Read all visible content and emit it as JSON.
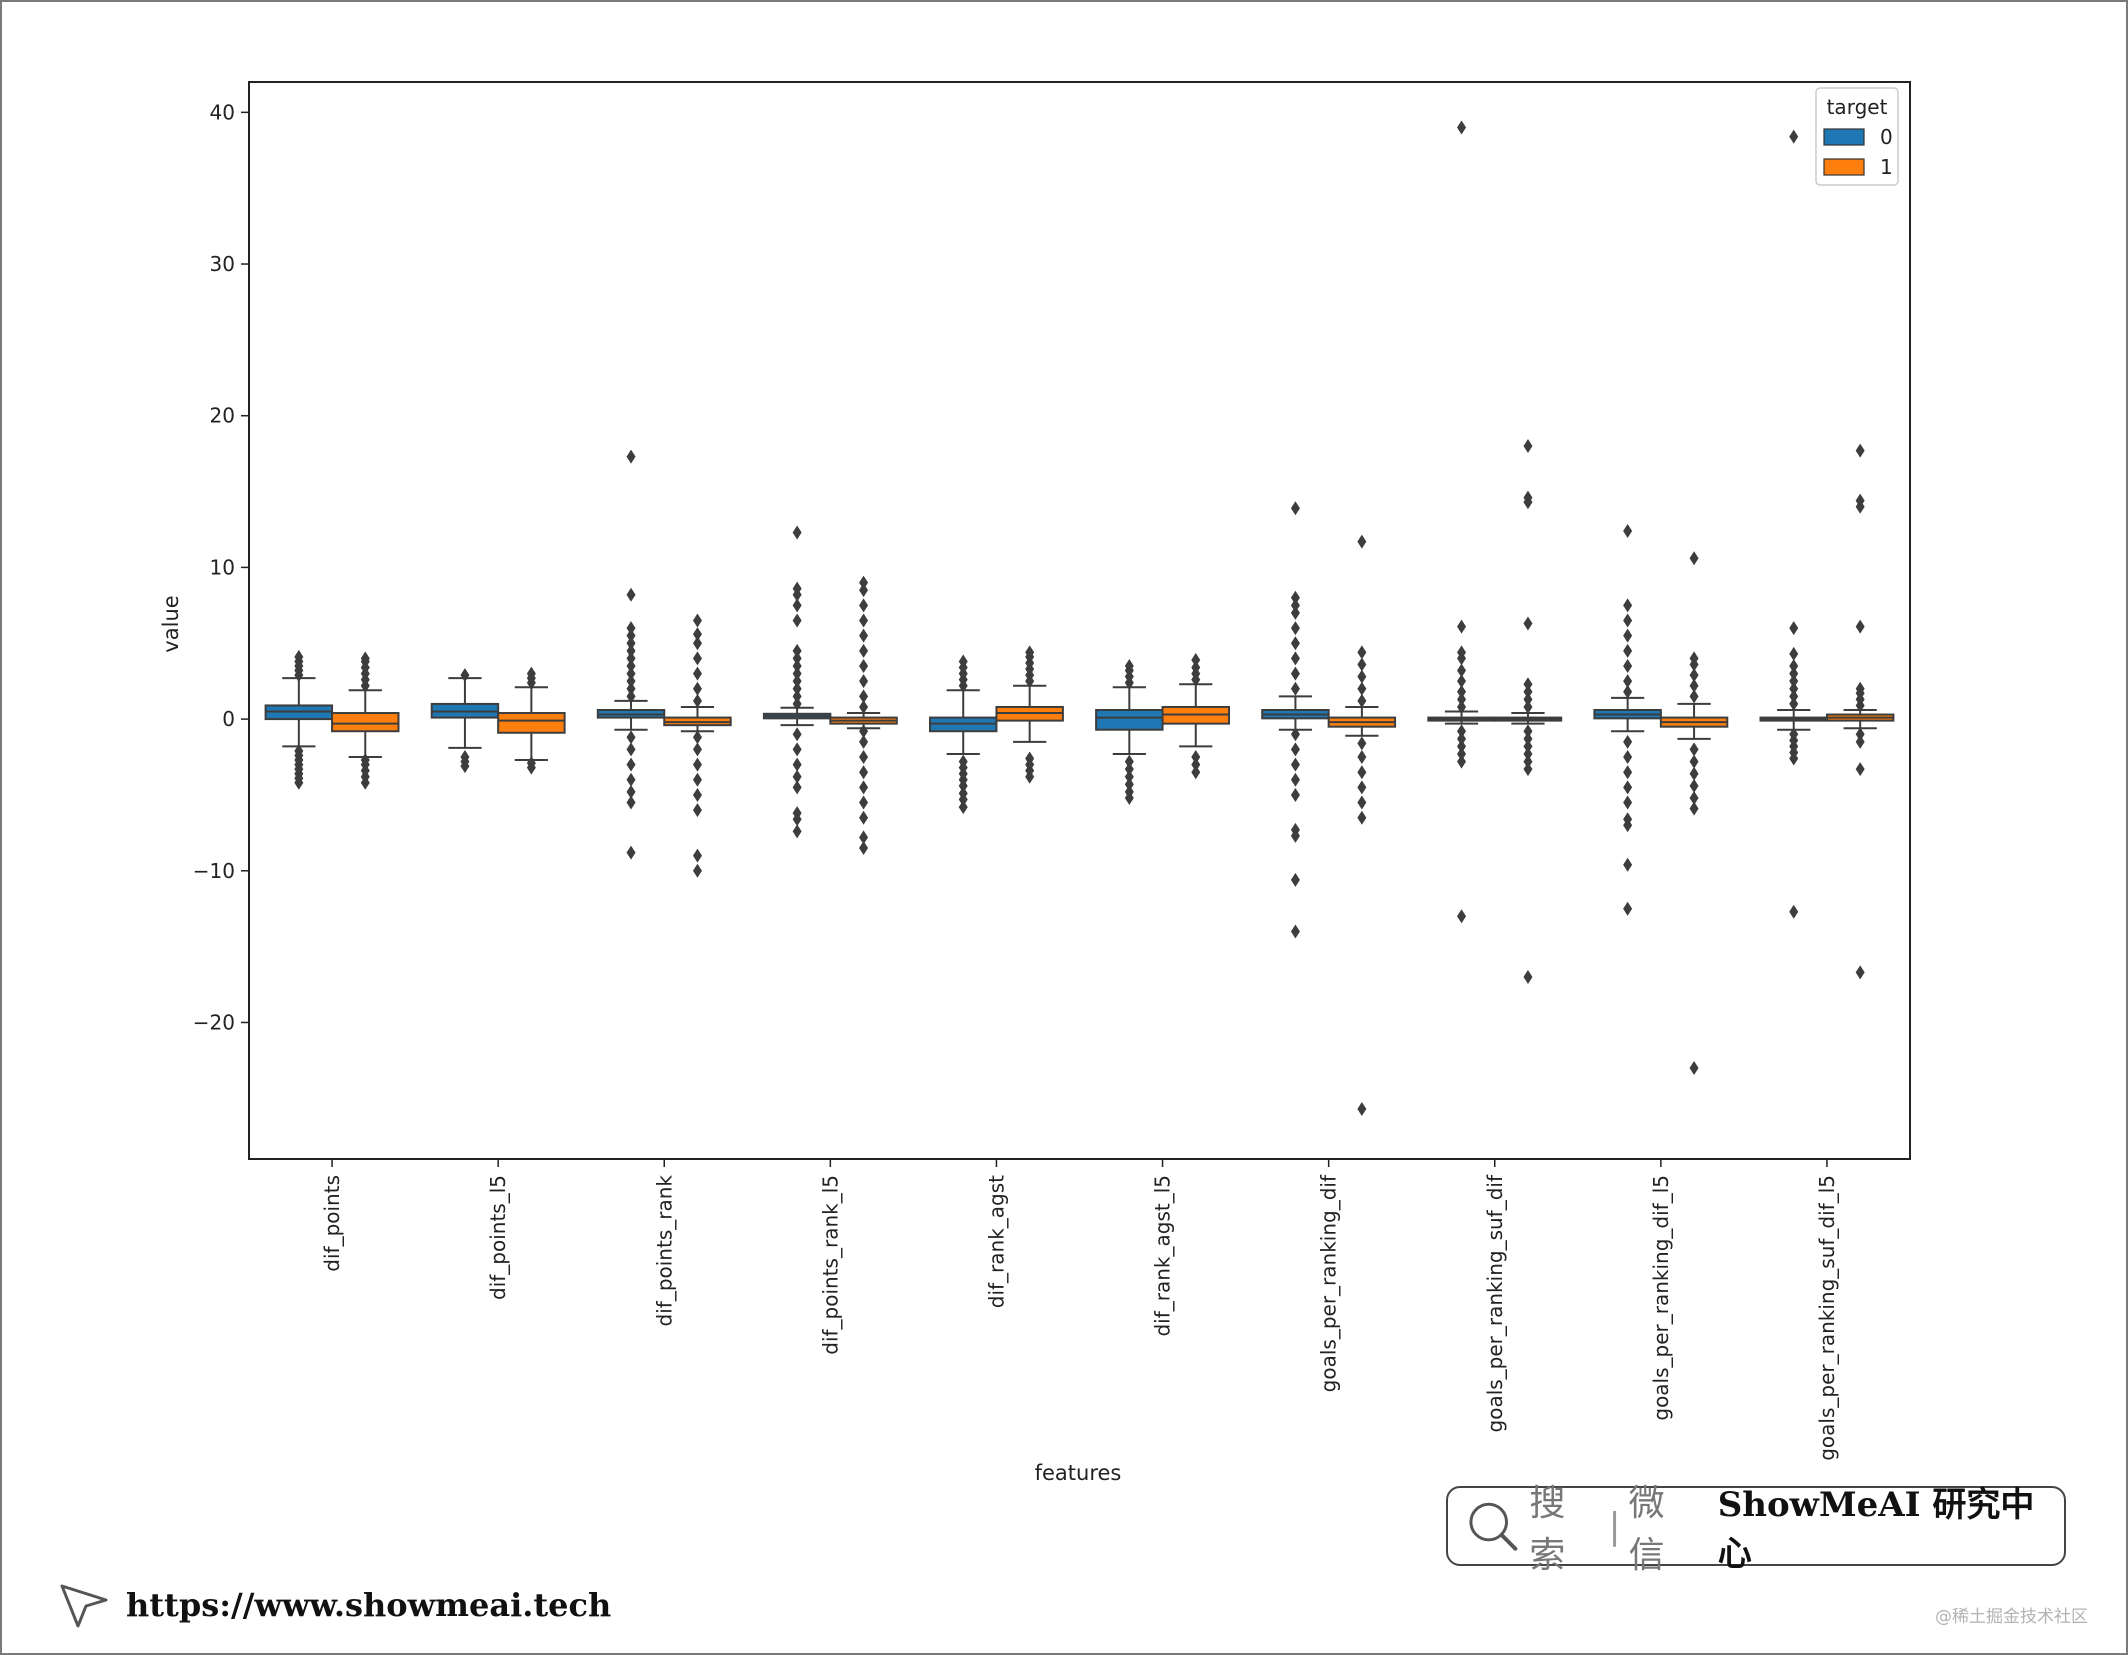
{
  "chart_data": {
    "type": "box",
    "xlabel": "features",
    "ylabel": "value",
    "ylim": [
      -29,
      42
    ],
    "yticks": [
      40,
      30,
      20,
      10,
      0,
      -10,
      -20
    ],
    "ytick_labels": [
      "40",
      "30",
      "20",
      "10",
      "0",
      "−10",
      "−20"
    ],
    "legend": {
      "title": "target",
      "placement": "top-right",
      "entries": [
        "0",
        "1"
      ]
    },
    "colors": {
      "0": "#1f77b4",
      "1": "#ff7f0e"
    },
    "grid": false,
    "categories": [
      "dif_points",
      "dif_points_l5",
      "dif_points_rank",
      "dif_points_rank_l5",
      "dif_rank_agst",
      "dif_rank_agst_l5",
      "goals_per_ranking_dif",
      "goals_per_ranking_suf_dif",
      "goals_per_ranking_dif_l5",
      "goals_per_ranking_suf_dif_l5"
    ],
    "series": [
      {
        "name": "0",
        "boxes": [
          {
            "whislo": -1.8,
            "q1": 0.0,
            "med": 0.5,
            "q3": 0.9,
            "whishi": 2.7,
            "fliers": [
              -4.2,
              -3.9,
              -3.6,
              -3.3,
              -3.0,
              -2.7,
              -2.4,
              -2.1,
              2.9,
              3.2,
              3.5,
              3.8,
              4.1
            ]
          },
          {
            "whislo": -1.9,
            "q1": 0.1,
            "med": 0.5,
            "q3": 1.0,
            "whishi": 2.7,
            "fliers": [
              -3.1,
              -2.8,
              -2.5,
              2.9
            ]
          },
          {
            "whislo": -0.7,
            "q1": 0.1,
            "med": 0.3,
            "q3": 0.6,
            "whishi": 1.2,
            "fliers": [
              -8.8,
              -5.5,
              -4.8,
              -4.0,
              -3.0,
              -2.0,
              -1.2,
              1.5,
              2.0,
              2.5,
              3.0,
              3.5,
              4.0,
              4.5,
              5.0,
              5.5,
              6.0,
              8.2,
              17.3
            ]
          },
          {
            "whislo": -0.4,
            "q1": 0.05,
            "med": 0.2,
            "q3": 0.35,
            "whishi": 0.75,
            "fliers": [
              -7.4,
              -6.6,
              -6.2,
              -4.5,
              -3.8,
              -3.0,
              -2.0,
              -1.0,
              1.0,
              1.5,
              2.0,
              2.5,
              3.0,
              3.5,
              4.0,
              4.5,
              6.5,
              7.5,
              8.2,
              8.6,
              12.3
            ]
          },
          {
            "whislo": -2.3,
            "q1": -0.8,
            "med": -0.3,
            "q3": 0.1,
            "whishi": 1.9,
            "fliers": [
              -5.8,
              -5.3,
              -4.9,
              -4.4,
              -4.0,
              -3.6,
              -3.2,
              -2.8,
              2.2,
              2.6,
              3.0,
              3.4,
              3.8
            ]
          },
          {
            "whislo": -2.3,
            "q1": -0.7,
            "med": 0.1,
            "q3": 0.6,
            "whishi": 2.1,
            "fliers": [
              -5.2,
              -4.8,
              -4.3,
              -3.8,
              -3.3,
              -2.8,
              2.4,
              2.8,
              3.2,
              3.5
            ]
          },
          {
            "whislo": -0.7,
            "q1": 0.05,
            "med": 0.3,
            "q3": 0.6,
            "whishi": 1.5,
            "fliers": [
              -14.0,
              -10.6,
              -7.7,
              -7.3,
              -5.0,
              -4.0,
              -3.0,
              -2.0,
              -1.0,
              2.0,
              3.0,
              4.0,
              5.0,
              6.0,
              7.0,
              7.5,
              8.0,
              13.9
            ]
          },
          {
            "whislo": -0.3,
            "q1": -0.1,
            "med": 0.0,
            "q3": 0.1,
            "whishi": 0.5,
            "fliers": [
              -13.0,
              -2.8,
              -2.3,
              -1.8,
              -1.3,
              -0.8,
              0.8,
              1.3,
              1.8,
              2.5,
              3.2,
              4.0,
              4.4,
              6.1,
              39.0
            ]
          },
          {
            "whislo": -0.8,
            "q1": 0.05,
            "med": 0.3,
            "q3": 0.6,
            "whishi": 1.4,
            "fliers": [
              -12.5,
              -9.6,
              -7.0,
              -6.6,
              -5.5,
              -4.5,
              -3.5,
              -2.5,
              -1.5,
              1.8,
              2.5,
              3.5,
              4.5,
              5.5,
              6.5,
              7.5,
              12.4
            ]
          },
          {
            "whislo": -0.7,
            "q1": -0.1,
            "med": 0.0,
            "q3": 0.1,
            "whishi": 0.6,
            "fliers": [
              -12.7,
              -2.6,
              -2.2,
              -1.8,
              -1.4,
              -1.0,
              1.0,
              1.5,
              2.0,
              2.5,
              3.0,
              3.5,
              4.3,
              6.0,
              38.4
            ]
          }
        ]
      },
      {
        "name": "1",
        "boxes": [
          {
            "whislo": -2.5,
            "q1": -0.8,
            "med": -0.3,
            "q3": 0.4,
            "whishi": 1.9,
            "fliers": [
              -4.2,
              -3.8,
              -3.4,
              -3.0,
              -2.7,
              2.2,
              2.6,
              3.0,
              3.4,
              3.8,
              4.0
            ]
          },
          {
            "whislo": -2.7,
            "q1": -0.9,
            "med": -0.1,
            "q3": 0.4,
            "whishi": 2.1,
            "fliers": [
              -3.2,
              -2.9,
              2.4,
              2.7,
              3.0
            ]
          },
          {
            "whislo": -0.8,
            "q1": -0.4,
            "med": -0.2,
            "q3": 0.1,
            "whishi": 0.8,
            "fliers": [
              -10.0,
              -9.0,
              -6.0,
              -5.0,
              -4.0,
              -3.0,
              -2.0,
              -1.2,
              1.2,
              2.0,
              3.0,
              4.0,
              5.0,
              5.6,
              6.5
            ]
          },
          {
            "whislo": -0.6,
            "q1": -0.3,
            "med": -0.1,
            "q3": 0.1,
            "whishi": 0.4,
            "fliers": [
              -8.5,
              -7.8,
              -6.5,
              -5.5,
              -4.5,
              -3.5,
              -2.5,
              -1.5,
              -0.8,
              0.8,
              1.5,
              2.5,
              3.5,
              4.5,
              5.5,
              6.5,
              7.5,
              8.5,
              9.0
            ]
          },
          {
            "whislo": -1.5,
            "q1": -0.1,
            "med": 0.4,
            "q3": 0.8,
            "whishi": 2.2,
            "fliers": [
              -3.8,
              -3.4,
              -3.0,
              -2.6,
              2.5,
              2.9,
              3.3,
              3.7,
              4.1,
              4.4
            ]
          },
          {
            "whislo": -1.8,
            "q1": -0.3,
            "med": 0.3,
            "q3": 0.8,
            "whishi": 2.3,
            "fliers": [
              -3.5,
              -3.0,
              -2.5,
              2.6,
              3.0,
              3.4,
              3.9
            ]
          },
          {
            "whislo": -1.1,
            "q1": -0.5,
            "med": -0.2,
            "q3": 0.1,
            "whishi": 0.8,
            "fliers": [
              -25.7,
              -6.5,
              -5.5,
              -4.5,
              -3.5,
              -2.5,
              -1.6,
              1.2,
              2.0,
              2.8,
              3.6,
              4.4,
              11.7
            ]
          },
          {
            "whislo": -0.3,
            "q1": -0.1,
            "med": 0.0,
            "q3": 0.1,
            "whishi": 0.4,
            "fliers": [
              -17.0,
              -3.3,
              -2.8,
              -2.3,
              -1.8,
              -1.3,
              -0.8,
              0.8,
              1.3,
              1.8,
              2.3,
              6.3,
              14.3,
              14.6,
              18.0
            ]
          },
          {
            "whislo": -1.3,
            "q1": -0.5,
            "med": -0.2,
            "q3": 0.1,
            "whishi": 1.0,
            "fliers": [
              -23.0,
              -5.9,
              -5.2,
              -4.4,
              -3.6,
              -2.8,
              -2.0,
              1.5,
              2.2,
              2.9,
              3.6,
              4.0,
              10.6
            ]
          },
          {
            "whislo": -0.6,
            "q1": -0.1,
            "med": 0.1,
            "q3": 0.3,
            "whishi": 0.6,
            "fliers": [
              -16.7,
              -3.3,
              -1.5,
              -1.0,
              0.9,
              1.3,
              1.7,
              2.0,
              6.1,
              14.0,
              14.4,
              17.7
            ]
          }
        ]
      }
    ]
  },
  "search_banner": {
    "search_text": "搜索",
    "separator": "|",
    "wechat_text": "微信",
    "brand_text": "ShowMeAI 研究中心",
    "search_icon": "search-icon"
  },
  "footer": {
    "url": "https://www.showmeai.tech",
    "cursor_icon": "cursor-icon"
  },
  "watermark": "@稀土掘金技术社区"
}
